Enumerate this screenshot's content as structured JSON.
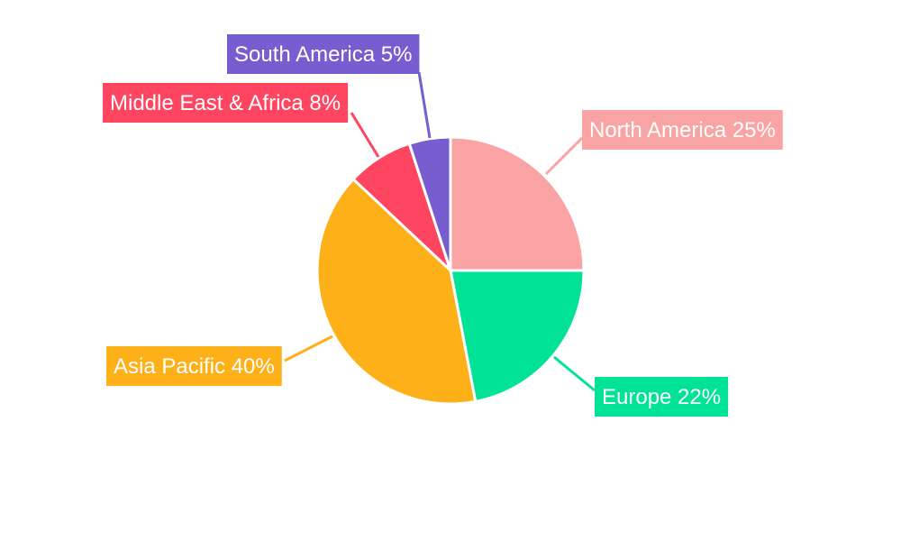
{
  "chart_data": {
    "type": "pie",
    "title": "",
    "categories": [
      "North America",
      "Europe",
      "Asia Pacific",
      "Middle East & Africa",
      "South America"
    ],
    "values": [
      25,
      22,
      40,
      8,
      5
    ],
    "labels": [
      "North America 25%",
      "Europe 22%",
      "Asia Pacific 40%",
      "Middle East & Africa 8%",
      "South America 5%"
    ],
    "colors": [
      "#F9A3A4",
      "#00E396",
      "#FEB019",
      "#FF4560",
      "#775DD0"
    ],
    "start_angle": "top",
    "direction": "clockwise",
    "legend": "none"
  }
}
